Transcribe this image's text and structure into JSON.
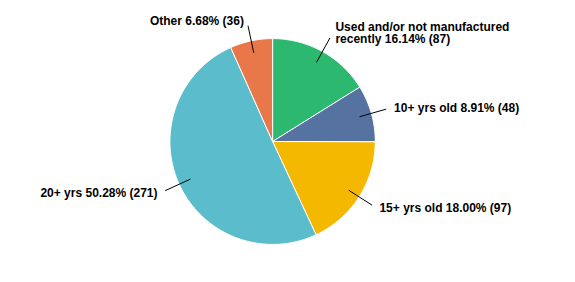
{
  "chart_data": {
    "type": "pie",
    "categories": [
      "Used and/or not manufactured\nrecently 16.14% (87)",
      "10+ yrs old 8.91% (48)",
      "15+ yrs old 18.00% (97)",
      "20+ yrs 50.28% (271)",
      "Other 6.68% (36)"
    ],
    "values": [
      16.14,
      8.91,
      18.0,
      50.28,
      6.68
    ],
    "colors": [
      "#2db870",
      "#5572a0",
      "#f5b800",
      "#5bbccc",
      "#e8784a"
    ]
  }
}
